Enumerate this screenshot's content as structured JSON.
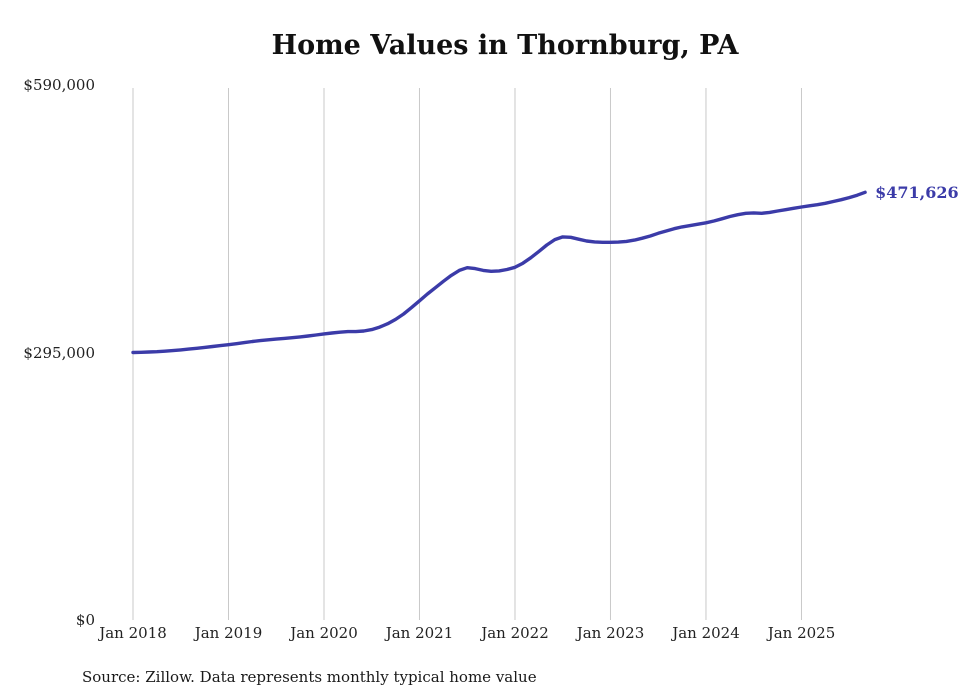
{
  "chart_data": {
    "type": "line",
    "title": "Home Values in Thornburg, PA",
    "frequency": "monthly",
    "x_start": "Jan 2018",
    "x_end": "Sep 2025",
    "x_tick_labels": [
      "Jan 2018",
      "Jan 2019",
      "Jan 2020",
      "Jan 2021",
      "Jan 2022",
      "Jan 2023",
      "Jan 2024",
      "Jan 2025"
    ],
    "y_tick_labels": [
      "$590,000",
      "$295,000",
      "$0"
    ],
    "y_ticks": [
      590000,
      295000,
      0
    ],
    "ylim": [
      0,
      590000
    ],
    "grid": "vertical-only",
    "legend": "none",
    "line_color": "#3b3ba8",
    "gridline_color": "#c9c9c9",
    "values": [
      295000,
      295200,
      295500,
      295900,
      296400,
      297100,
      297900,
      298700,
      299600,
      300600,
      301600,
      302600,
      303600,
      304700,
      305900,
      307100,
      308100,
      309000,
      309800,
      310500,
      311300,
      312200,
      313200,
      314300,
      315500,
      316500,
      317400,
      318100,
      318000,
      318700,
      320300,
      323000,
      326800,
      331500,
      337500,
      344500,
      352000,
      359500,
      366500,
      373500,
      380000,
      385500,
      388500,
      387500,
      385500,
      384500,
      385000,
      386500,
      389000,
      393500,
      399500,
      406500,
      413500,
      419500,
      422500,
      422000,
      420000,
      418000,
      417000,
      416500,
      416500,
      416800,
      417500,
      419000,
      421000,
      423500,
      426500,
      429000,
      431500,
      433500,
      435000,
      436500,
      438000,
      440000,
      442500,
      445000,
      447000,
      448500,
      449000,
      448500,
      449500,
      451000,
      452500,
      454000,
      455500,
      456800,
      458000,
      459500,
      461500,
      463500,
      465800,
      468500,
      471626
    ],
    "end_label": "$471,626",
    "latest_value": 471626
  },
  "footer": {
    "source": "Source: Zillow. Data represents monthly typical home value"
  }
}
